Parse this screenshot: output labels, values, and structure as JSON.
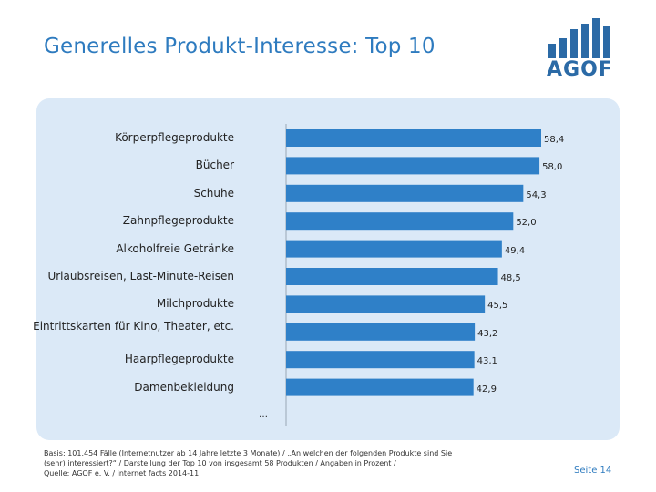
{
  "title": "Generelles Produkt-Interesse: Top 10",
  "logo": {
    "text": "AGOF",
    "color": "#2b6aa6"
  },
  "colors": {
    "bar": "#2f80c8",
    "panel": "#dbe9f7",
    "title": "#2e7bbf"
  },
  "chart_data": {
    "type": "bar",
    "orientation": "horizontal",
    "categories": [
      "Körperpflegeprodukte",
      "Bücher",
      "Schuhe",
      "Zahnpflegeprodukte",
      "Alkoholfreie Getränke",
      "Urlaubsreisen, Last-Minute-Reisen",
      "Milchprodukte",
      "Eintrittskarten für Kino, Theater, etc.",
      "Haarpflegeprodukte",
      "Damenbekleidung"
    ],
    "values": [
      58.4,
      58.0,
      54.3,
      52.0,
      49.4,
      48.5,
      45.5,
      43.2,
      43.1,
      42.9
    ],
    "value_labels": [
      "58,4",
      "58,0",
      "54,3",
      "52,0",
      "49,4",
      "48,5",
      "45,5",
      "43,2",
      "43,1",
      "42,9"
    ],
    "trailing_label": "…",
    "xlim": [
      0,
      60
    ]
  },
  "footnote": {
    "line1": "Basis: 101.454 Fälle (Internetnutzer ab 14 Jahre letzte 3 Monate) / „An welchen der folgenden Produkte sind Sie",
    "line2": "(sehr) interessiert?“ / Darstellung der Top 10 von insgesamt 58 Produkten / Angaben in Prozent /",
    "line3": "Quelle: AGOF e. V. / internet facts 2014-11"
  },
  "page": "Seite 14"
}
